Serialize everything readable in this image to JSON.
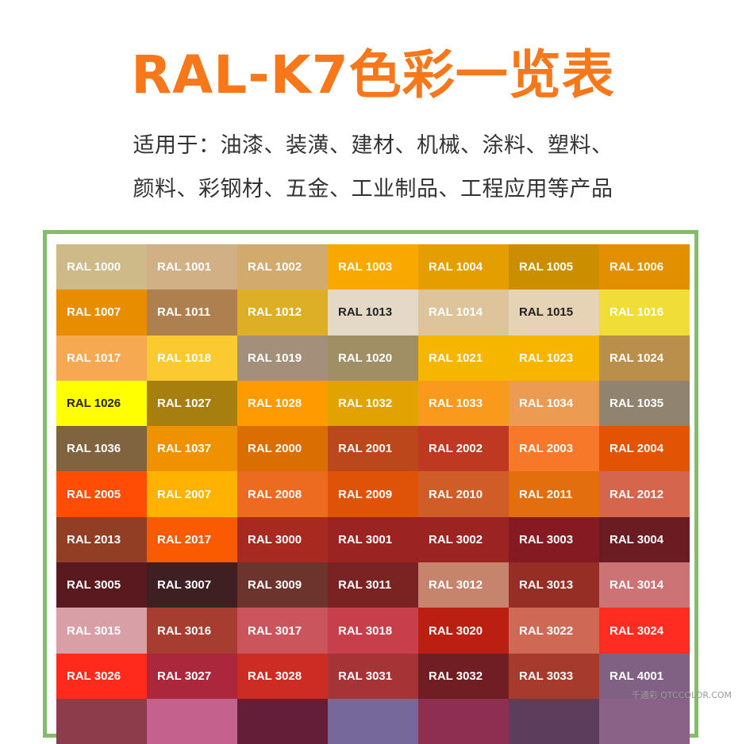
{
  "header": {
    "title": "RAL-K7色彩一览表",
    "title_color": "#f7781a",
    "subtitle_line1": "适用于：油漆、装潢、建材、机械、涂料、塑料、",
    "subtitle_line2": "颜料、彩钢材、五金、工业制品、工程应用等产品"
  },
  "frame_color": "#84bd6a",
  "swatches": [
    {
      "label": "RAL 1000",
      "color": "#cdba88"
    },
    {
      "label": "RAL 1001",
      "color": "#d0b084"
    },
    {
      "label": "RAL 1002",
      "color": "#d2aa6d"
    },
    {
      "label": "RAL 1003",
      "color": "#f9a800"
    },
    {
      "label": "RAL 1004",
      "color": "#e49e00"
    },
    {
      "label": "RAL 1005",
      "color": "#cb8e00"
    },
    {
      "label": "RAL 1006",
      "color": "#e29000"
    },
    {
      "label": "RAL 1007",
      "color": "#e88c00"
    },
    {
      "label": "RAL 1011",
      "color": "#af804f"
    },
    {
      "label": "RAL 1012",
      "color": "#ddaf27"
    },
    {
      "label": "RAL 1013",
      "color": "#e3d9c6",
      "text": "dark"
    },
    {
      "label": "RAL 1014",
      "color": "#ddc49a"
    },
    {
      "label": "RAL 1015",
      "color": "#e6d2b5",
      "text": "dark"
    },
    {
      "label": "RAL 1016",
      "color": "#f1dd38"
    },
    {
      "label": "RAL 1017",
      "color": "#f6a950"
    },
    {
      "label": "RAL 1018",
      "color": "#faca30"
    },
    {
      "label": "RAL 1019",
      "color": "#a48f7a"
    },
    {
      "label": "RAL 1020",
      "color": "#a08f65"
    },
    {
      "label": "RAL 1021",
      "color": "#f6b600"
    },
    {
      "label": "RAL 1023",
      "color": "#f7b500"
    },
    {
      "label": "RAL 1024",
      "color": "#ba8f4c"
    },
    {
      "label": "RAL 1026",
      "color": "#ffff00",
      "text": "dark"
    },
    {
      "label": "RAL 1027",
      "color": "#a77f0e"
    },
    {
      "label": "RAL 1028",
      "color": "#ff9b00"
    },
    {
      "label": "RAL 1032",
      "color": "#e2a300"
    },
    {
      "label": "RAL 1033",
      "color": "#f99a1c"
    },
    {
      "label": "RAL 1034",
      "color": "#eb9c52"
    },
    {
      "label": "RAL 1035",
      "color": "#908370"
    },
    {
      "label": "RAL 1036",
      "color": "#80643f"
    },
    {
      "label": "RAL 1037",
      "color": "#f09200"
    },
    {
      "label": "RAL 2000",
      "color": "#da6e00"
    },
    {
      "label": "RAL 2001",
      "color": "#ba481b"
    },
    {
      "label": "RAL 2002",
      "color": "#bf3922"
    },
    {
      "label": "RAL 2003",
      "color": "#f67828"
    },
    {
      "label": "RAL 2004",
      "color": "#e25303"
    },
    {
      "label": "RAL 2005",
      "color": "#ff4d06"
    },
    {
      "label": "RAL 2007",
      "color": "#ffb200"
    },
    {
      "label": "RAL 2008",
      "color": "#ed6b21"
    },
    {
      "label": "RAL 2009",
      "color": "#de5307"
    },
    {
      "label": "RAL 2010",
      "color": "#d05d28"
    },
    {
      "label": "RAL 2011",
      "color": "#e26e0e"
    },
    {
      "label": "RAL 2012",
      "color": "#d5654d"
    },
    {
      "label": "RAL 2013",
      "color": "#923e25"
    },
    {
      "label": "RAL 2017",
      "color": "#fa5a00"
    },
    {
      "label": "RAL 3000",
      "color": "#a72920"
    },
    {
      "label": "RAL 3001",
      "color": "#9b2423"
    },
    {
      "label": "RAL 3002",
      "color": "#9b2321"
    },
    {
      "label": "RAL 3003",
      "color": "#861a22"
    },
    {
      "label": "RAL 3004",
      "color": "#6b1c23"
    },
    {
      "label": "RAL 3005",
      "color": "#59191f"
    },
    {
      "label": "RAL 3007",
      "color": "#3e2022"
    },
    {
      "label": "RAL 3009",
      "color": "#6d342d"
    },
    {
      "label": "RAL 3011",
      "color": "#792423"
    },
    {
      "label": "RAL 3012",
      "color": "#c6846d"
    },
    {
      "label": "RAL 3013",
      "color": "#972e25"
    },
    {
      "label": "RAL 3014",
      "color": "#cb7375"
    },
    {
      "label": "RAL 3015",
      "color": "#d8a0a6"
    },
    {
      "label": "RAL 3016",
      "color": "#a63d30"
    },
    {
      "label": "RAL 3017",
      "color": "#ca555d"
    },
    {
      "label": "RAL 3018",
      "color": "#c63f4a"
    },
    {
      "label": "RAL 3020",
      "color": "#bb1f11"
    },
    {
      "label": "RAL 3022",
      "color": "#cf6955"
    },
    {
      "label": "RAL 3024",
      "color": "#ff2d21"
    },
    {
      "label": "RAL 3026",
      "color": "#ff2a1c"
    },
    {
      "label": "RAL 3027",
      "color": "#ab273c"
    },
    {
      "label": "RAL 3028",
      "color": "#cc2c24"
    },
    {
      "label": "RAL 3031",
      "color": "#a63437"
    },
    {
      "label": "RAL 3032",
      "color": "#701d23"
    },
    {
      "label": "RAL 3033",
      "color": "#a53a2d"
    },
    {
      "label": "RAL 4001",
      "color": "#816183"
    },
    {
      "label": "",
      "color": "#8d3c4b"
    },
    {
      "label": "",
      "color": "#c4618c"
    },
    {
      "label": "",
      "color": "#651e38"
    },
    {
      "label": "",
      "color": "#76689a"
    },
    {
      "label": "",
      "color": "#8e2f52"
    },
    {
      "label": "",
      "color": "#5c3d5c"
    },
    {
      "label": "",
      "color": "#8b6287"
    }
  ],
  "watermark": "千通彩 QTCCOLOR.COM"
}
